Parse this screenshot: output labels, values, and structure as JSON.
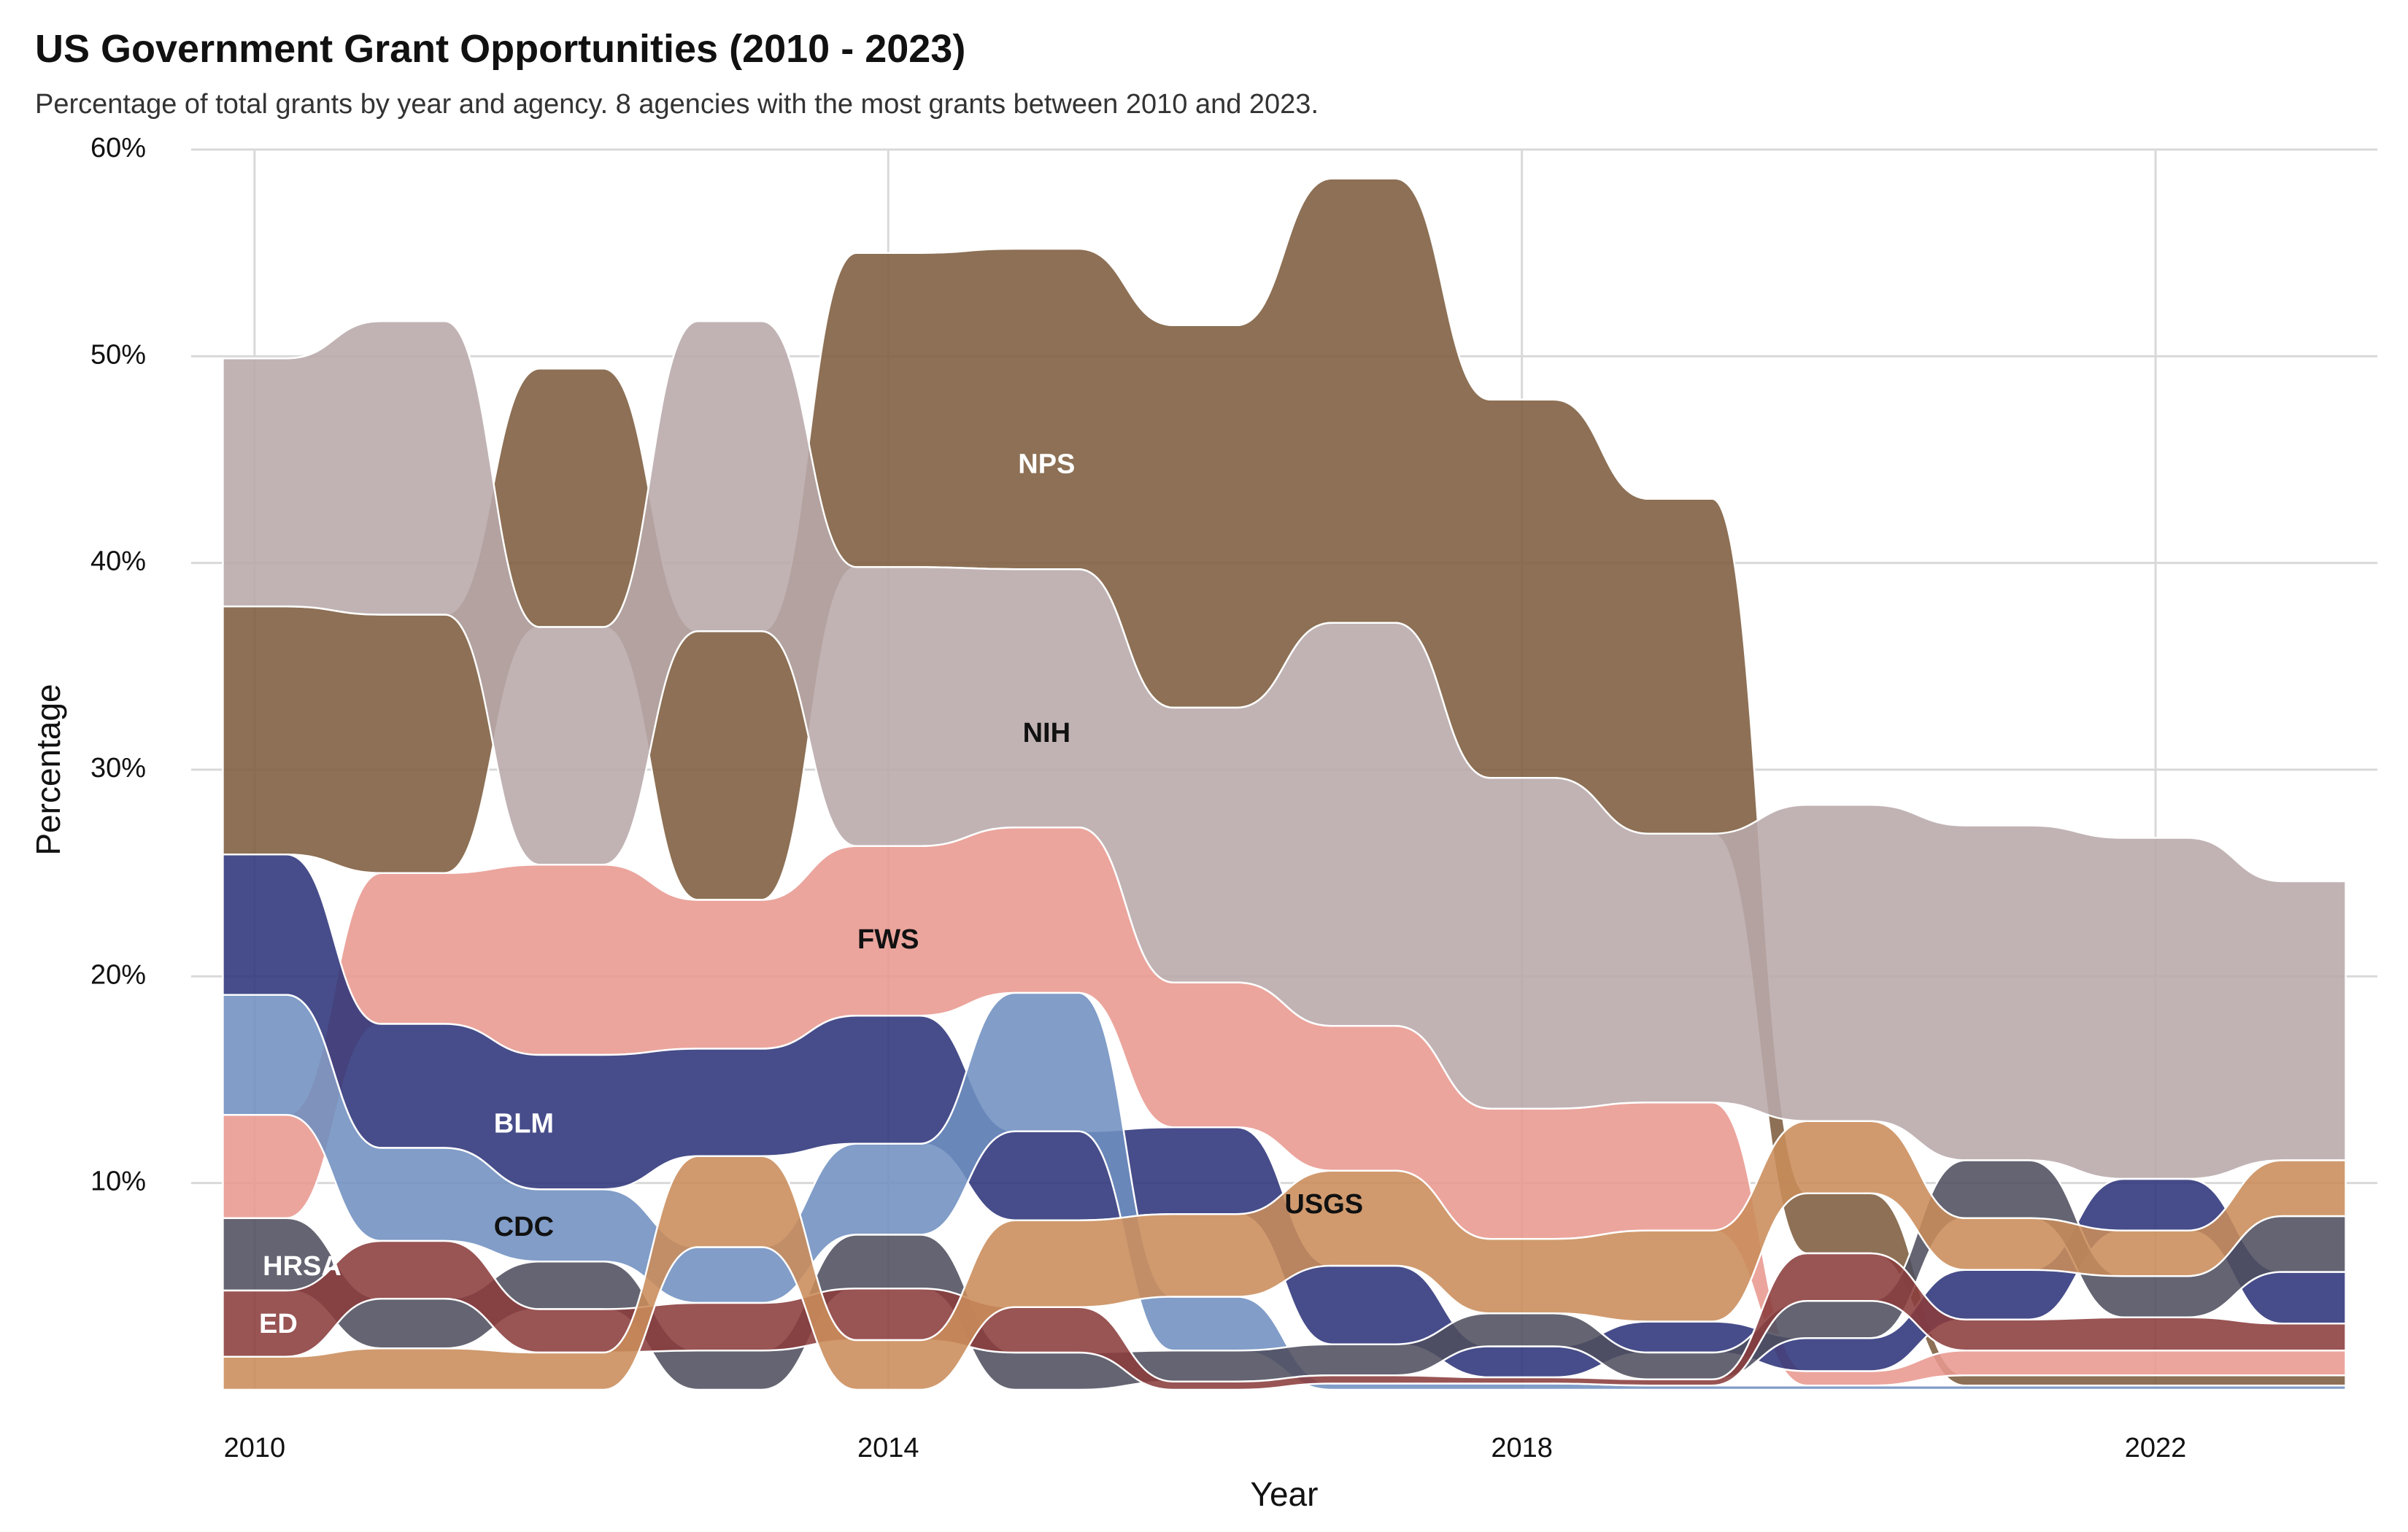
{
  "chart_data": {
    "type": "area",
    "subtype": "bump-area (ranked stream)",
    "title": "US Government Grant Opportunities (2010 - 2023)",
    "subtitle": "Percentage of total grants by year and agency. 8 agencies with the most grants between 2010 and 2023.",
    "xlabel": "Year",
    "ylabel": "Percentage",
    "x": [
      2010,
      2011,
      2012,
      2013,
      2014,
      2015,
      2016,
      2017,
      2018,
      2019,
      2020,
      2021,
      2022,
      2023
    ],
    "xlim": [
      2009.6,
      2023.4
    ],
    "ylim": [
      0,
      60
    ],
    "x_ticks": [
      2010,
      2014,
      2018,
      2022
    ],
    "y_ticks": [
      10,
      20,
      30,
      40,
      50,
      60
    ],
    "y_tick_format": "percent",
    "grid": true,
    "legend": "none (direct labels)",
    "series": [
      {
        "name": "NPS",
        "color": "#7d5c3e",
        "label_color": "#ffffff",
        "values": [
          12.0,
          12.5,
          12.5,
          13.0,
          15.2,
          15.5,
          18.5,
          21.5,
          18.3,
          16.2,
          2.9,
          0.5,
          0.5,
          0.5
        ]
      },
      {
        "name": "NIH",
        "color": "#b8a9aa",
        "label_color": "#111111",
        "values": [
          12.0,
          14.2,
          11.5,
          15.0,
          13.5,
          12.5,
          13.3,
          19.5,
          16.0,
          13.0,
          15.3,
          16.2,
          16.5,
          13.5
        ]
      },
      {
        "name": "FWS",
        "color": "#e8988f",
        "label_color": "#111111",
        "values": [
          5.0,
          7.3,
          9.2,
          7.2,
          8.2,
          8.0,
          7.0,
          7.0,
          6.3,
          6.2,
          0.7,
          1.2,
          1.2,
          1.2
        ]
      },
      {
        "name": "BLM",
        "color": "#2e347a",
        "label_color": "#ffffff",
        "values": [
          6.8,
          6.0,
          6.5,
          5.2,
          6.2,
          4.3,
          4.2,
          3.8,
          1.5,
          1.5,
          1.6,
          2.4,
          2.5,
          2.5
        ]
      },
      {
        "name": "CDC",
        "color": "#6f8fc0",
        "label_color": "#111111",
        "values": [
          5.8,
          4.5,
          3.5,
          2.7,
          4.4,
          6.7,
          2.6,
          0.3,
          0.3,
          0.2,
          0.2,
          0.2,
          0.2,
          0.2
        ]
      },
      {
        "name": "HRSA",
        "color": "#4e4e5e",
        "label_color": "#ffffff",
        "values": [
          3.5,
          2.4,
          2.3,
          1.9,
          2.6,
          1.8,
          1.5,
          1.5,
          1.6,
          1.3,
          1.8,
          2.8,
          2.0,
          2.7
        ]
      },
      {
        "name": "ED",
        "color": "#8b3c3c",
        "label_color": "#ffffff",
        "values": [
          3.2,
          2.8,
          2.1,
          2.3,
          2.5,
          2.2,
          0.4,
          0.4,
          0.3,
          0.3,
          2.3,
          1.5,
          1.6,
          1.3
        ]
      },
      {
        "name": "USGS",
        "color": "#c98c5a",
        "label_color": "#111111",
        "values": [
          1.6,
          2.0,
          1.8,
          4.4,
          2.4,
          4.2,
          4.0,
          4.6,
          3.6,
          4.4,
          3.5,
          2.5,
          2.2,
          2.7
        ]
      }
    ],
    "labels": [
      {
        "series": "NPS",
        "x": 2015.0,
        "y": 44.7
      },
      {
        "series": "NIH",
        "x": 2015.0,
        "y": 31.7
      },
      {
        "series": "FWS",
        "x": 2014.0,
        "y": 21.7
      },
      {
        "series": "BLM",
        "x": 2011.7,
        "y": 12.8
      },
      {
        "series": "CDC",
        "x": 2011.7,
        "y": 7.8
      },
      {
        "series": "HRSA",
        "x": 2010.3,
        "y": 5.9
      },
      {
        "series": "ED",
        "x": 2010.15,
        "y": 3.1
      },
      {
        "series": "USGS",
        "x": 2016.75,
        "y": 8.9
      }
    ]
  }
}
